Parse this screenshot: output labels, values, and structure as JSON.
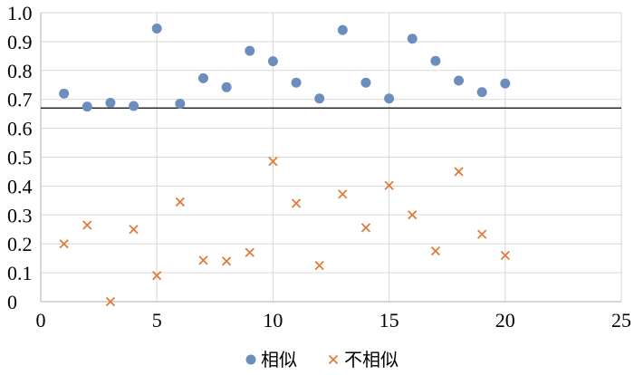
{
  "chart_data": {
    "type": "scatter",
    "xlim": [
      0,
      25
    ],
    "ylim": [
      0,
      1.0
    ],
    "x_ticks": [
      "0",
      "5",
      "10",
      "15",
      "20",
      "25"
    ],
    "y_ticks": [
      "0",
      "0.1",
      "0.2",
      "0.3",
      "0.4",
      "0.5",
      "0.6",
      "0.7",
      "0.8",
      "0.9",
      "1.0"
    ],
    "grid": true,
    "reference_line_y": 0.67,
    "legend_position": "bottom",
    "series": [
      {
        "name": "相似",
        "marker": "circle",
        "color": "#6c8ebf",
        "x": [
          1,
          2,
          3,
          4,
          5,
          6,
          7,
          8,
          9,
          10,
          11,
          12,
          13,
          14,
          15,
          16,
          17,
          18,
          19,
          20
        ],
        "y": [
          0.72,
          0.675,
          0.688,
          0.677,
          0.945,
          0.685,
          0.773,
          0.742,
          0.868,
          0.832,
          0.758,
          0.703,
          0.94,
          0.758,
          0.703,
          0.91,
          0.833,
          0.765,
          0.725,
          0.755
        ]
      },
      {
        "name": "不相似",
        "marker": "x",
        "color": "#e07b39",
        "x": [
          1,
          2,
          3,
          4,
          5,
          6,
          7,
          8,
          9,
          10,
          11,
          12,
          13,
          14,
          15,
          16,
          17,
          18,
          19,
          20
        ],
        "y": [
          0.2,
          0.265,
          0.0,
          0.25,
          0.09,
          0.345,
          0.143,
          0.14,
          0.17,
          0.485,
          0.34,
          0.125,
          0.372,
          0.256,
          0.402,
          0.3,
          0.175,
          0.45,
          0.233,
          0.16
        ]
      }
    ]
  }
}
